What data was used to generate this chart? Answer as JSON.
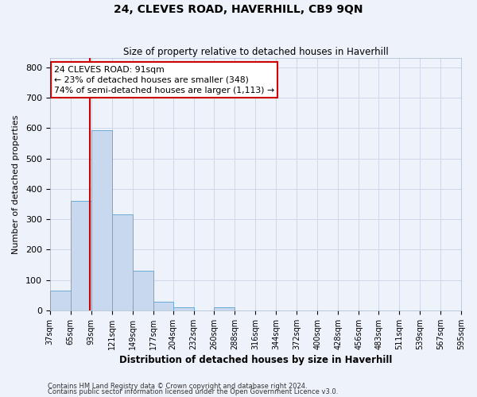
{
  "title": "24, CLEVES ROAD, HAVERHILL, CB9 9QN",
  "subtitle": "Size of property relative to detached houses in Haverhill",
  "xlabel": "Distribution of detached houses by size in Haverhill",
  "ylabel": "Number of detached properties",
  "bar_edges": [
    37,
    65,
    93,
    121,
    149,
    177,
    204,
    232,
    260,
    288,
    316,
    344,
    372,
    400,
    428,
    456,
    483,
    511,
    539,
    567,
    595
  ],
  "bar_heights": [
    65,
    360,
    592,
    315,
    130,
    28,
    10,
    0,
    10,
    0,
    0,
    0,
    0,
    0,
    0,
    0,
    0,
    0,
    0,
    0
  ],
  "bar_color": "#c8d8ee",
  "bar_edge_color": "#6aaad4",
  "vline_x": 91,
  "vline_color": "#cc0000",
  "annotation_line1": "24 CLEVES ROAD: 91sqm",
  "annotation_line2": "← 23% of detached houses are smaller (348)",
  "annotation_line3": "74% of semi-detached houses are larger (1,113) →",
  "annotation_box_edge": "#cc0000",
  "annotation_box_face": "#ffffff",
  "ylim": [
    0,
    830
  ],
  "yticks": [
    0,
    100,
    200,
    300,
    400,
    500,
    600,
    700,
    800
  ],
  "tick_labels": [
    "37sqm",
    "65sqm",
    "93sqm",
    "121sqm",
    "149sqm",
    "177sqm",
    "204sqm",
    "232sqm",
    "260sqm",
    "288sqm",
    "316sqm",
    "344sqm",
    "372sqm",
    "400sqm",
    "428sqm",
    "456sqm",
    "483sqm",
    "511sqm",
    "539sqm",
    "567sqm",
    "595sqm"
  ],
  "footer1": "Contains HM Land Registry data © Crown copyright and database right 2024.",
  "footer2": "Contains public sector information licensed under the Open Government Licence v3.0.",
  "grid_color": "#cdd8e8",
  "background_color": "#eef2fb"
}
